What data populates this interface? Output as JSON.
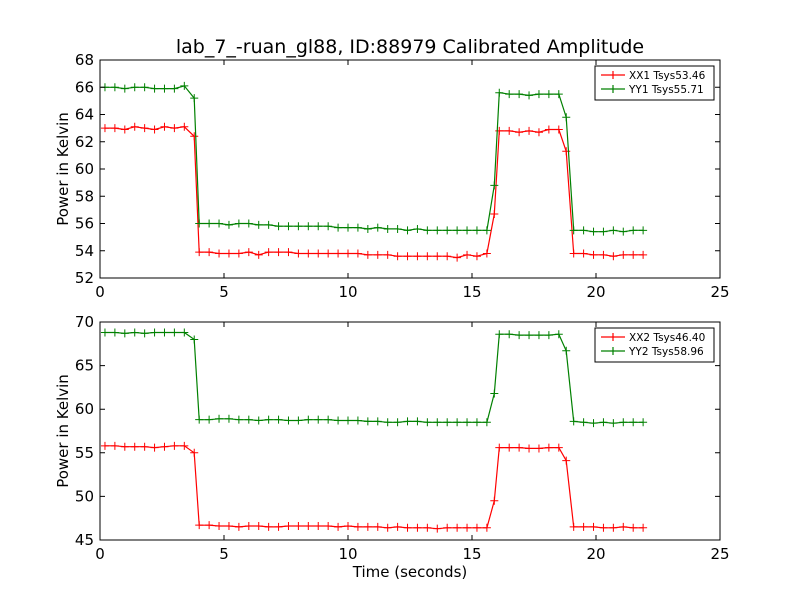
{
  "chart_data": [
    {
      "type": "line",
      "title": "lab_7_-ruan_gl88, ID:88979 Calibrated Amplitude",
      "xlabel": "",
      "ylabel": "Power in Kelvin",
      "xlim": [
        0,
        25
      ],
      "ylim": [
        52,
        68
      ],
      "xticks": [
        0,
        5,
        10,
        15,
        20,
        25
      ],
      "yticks": [
        52,
        54,
        56,
        58,
        60,
        62,
        64,
        66,
        68
      ],
      "grid": false,
      "legend_position": "top-right",
      "x": [
        0.2,
        0.6,
        1.0,
        1.4,
        1.8,
        2.2,
        2.6,
        3.0,
        3.4,
        3.8,
        4.0,
        4.4,
        4.8,
        5.2,
        5.6,
        6.0,
        6.4,
        6.8,
        7.2,
        7.6,
        8.0,
        8.4,
        8.8,
        9.2,
        9.6,
        10.0,
        10.4,
        10.8,
        11.2,
        11.6,
        12.0,
        12.4,
        12.8,
        13.2,
        13.6,
        14.0,
        14.4,
        14.8,
        15.2,
        15.6,
        15.9,
        16.1,
        16.5,
        16.9,
        17.3,
        17.7,
        18.1,
        18.5,
        18.8,
        19.1,
        19.5,
        19.9,
        20.3,
        20.7,
        21.1,
        21.5,
        21.9
      ],
      "series": [
        {
          "name": "XX1 Tsys53.46",
          "color": "#ff0000",
          "values": [
            63.0,
            63.0,
            62.9,
            63.1,
            63.0,
            62.9,
            63.1,
            63.0,
            63.1,
            62.4,
            53.9,
            53.9,
            53.8,
            53.8,
            53.8,
            53.9,
            53.7,
            53.9,
            53.9,
            53.9,
            53.8,
            53.8,
            53.8,
            53.8,
            53.8,
            53.8,
            53.8,
            53.7,
            53.7,
            53.7,
            53.6,
            53.6,
            53.6,
            53.6,
            53.6,
            53.6,
            53.5,
            53.7,
            53.6,
            53.8,
            56.7,
            62.8,
            62.8,
            62.7,
            62.8,
            62.7,
            62.9,
            62.9,
            61.3,
            53.8,
            53.8,
            53.7,
            53.7,
            53.6,
            53.7,
            53.7,
            53.7
          ]
        },
        {
          "name": "YY1 Tsys55.71",
          "color": "#008000",
          "values": [
            66.0,
            66.0,
            65.9,
            66.0,
            66.0,
            65.9,
            65.9,
            65.9,
            66.1,
            65.2,
            56.0,
            56.0,
            56.0,
            55.9,
            56.0,
            56.0,
            55.9,
            55.9,
            55.8,
            55.8,
            55.8,
            55.8,
            55.8,
            55.8,
            55.7,
            55.7,
            55.7,
            55.6,
            55.7,
            55.6,
            55.6,
            55.5,
            55.6,
            55.5,
            55.5,
            55.5,
            55.5,
            55.5,
            55.5,
            55.5,
            58.8,
            65.6,
            65.5,
            65.5,
            65.4,
            65.5,
            65.5,
            65.5,
            63.8,
            55.5,
            55.5,
            55.4,
            55.4,
            55.5,
            55.4,
            55.5,
            55.5
          ]
        }
      ]
    },
    {
      "type": "line",
      "title": "",
      "xlabel": "Time (seconds)",
      "ylabel": "Power in Kelvin",
      "xlim": [
        0,
        25
      ],
      "ylim": [
        45,
        70
      ],
      "xticks": [
        0,
        5,
        10,
        15,
        20,
        25
      ],
      "yticks": [
        45,
        50,
        55,
        60,
        65,
        70
      ],
      "grid": false,
      "legend_position": "top-right",
      "x": [
        0.2,
        0.6,
        1.0,
        1.4,
        1.8,
        2.2,
        2.6,
        3.0,
        3.4,
        3.8,
        4.0,
        4.4,
        4.8,
        5.2,
        5.6,
        6.0,
        6.4,
        6.8,
        7.2,
        7.6,
        8.0,
        8.4,
        8.8,
        9.2,
        9.6,
        10.0,
        10.4,
        10.8,
        11.2,
        11.6,
        12.0,
        12.4,
        12.8,
        13.2,
        13.6,
        14.0,
        14.4,
        14.8,
        15.2,
        15.6,
        15.9,
        16.1,
        16.5,
        16.9,
        17.3,
        17.7,
        18.1,
        18.5,
        18.8,
        19.1,
        19.5,
        19.9,
        20.3,
        20.7,
        21.1,
        21.5,
        21.9
      ],
      "series": [
        {
          "name": "XX2 Tsys46.40",
          "color": "#ff0000",
          "values": [
            55.8,
            55.8,
            55.7,
            55.7,
            55.7,
            55.6,
            55.7,
            55.8,
            55.8,
            55.0,
            46.7,
            46.7,
            46.6,
            46.6,
            46.5,
            46.6,
            46.6,
            46.5,
            46.5,
            46.6,
            46.6,
            46.6,
            46.6,
            46.6,
            46.5,
            46.6,
            46.5,
            46.5,
            46.5,
            46.4,
            46.5,
            46.4,
            46.4,
            46.4,
            46.3,
            46.4,
            46.4,
            46.4,
            46.4,
            46.4,
            49.5,
            55.6,
            55.6,
            55.6,
            55.5,
            55.5,
            55.6,
            55.6,
            54.1,
            46.5,
            46.5,
            46.5,
            46.4,
            46.4,
            46.5,
            46.4,
            46.4
          ]
        },
        {
          "name": "YY2 Tsys58.96",
          "color": "#008000",
          "values": [
            68.8,
            68.8,
            68.7,
            68.8,
            68.7,
            68.8,
            68.8,
            68.8,
            68.8,
            68.0,
            58.8,
            58.8,
            58.9,
            58.9,
            58.8,
            58.8,
            58.7,
            58.8,
            58.8,
            58.7,
            58.7,
            58.8,
            58.8,
            58.8,
            58.7,
            58.7,
            58.7,
            58.6,
            58.6,
            58.5,
            58.5,
            58.6,
            58.6,
            58.5,
            58.5,
            58.5,
            58.5,
            58.5,
            58.5,
            58.5,
            61.8,
            68.6,
            68.6,
            68.5,
            68.5,
            68.5,
            68.5,
            68.6,
            66.7,
            58.6,
            58.5,
            58.4,
            58.5,
            58.4,
            58.5,
            58.5,
            58.5
          ]
        }
      ]
    }
  ]
}
